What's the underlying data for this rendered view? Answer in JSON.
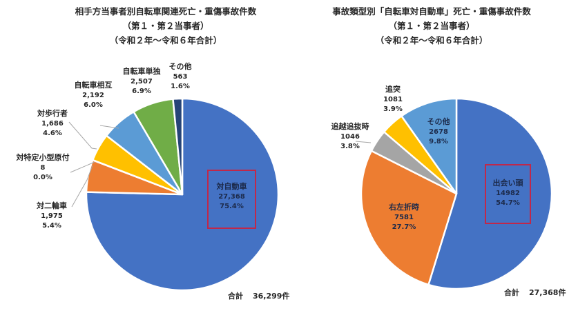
{
  "chart_data": [
    {
      "type": "pie",
      "title": "相手方当事者別自転車関連死亡・重傷事故件数",
      "subtitle": [
        "（第１・第２当事者）",
        "（令和２年～令和６年合計）"
      ],
      "categories": [
        "対自動車",
        "対二輪車",
        "対特定小型原付",
        "対歩行者",
        "自転車相互",
        "自転車単独",
        "その他"
      ],
      "values": [
        27368,
        1975,
        8,
        1686,
        2192,
        2507,
        563
      ],
      "value_labels": [
        "27,368",
        "1,975",
        "8",
        "1,686",
        "2,192",
        "2,507",
        "563"
      ],
      "percentages": [
        "75.4%",
        "5.4%",
        "0.0%",
        "4.6%",
        "6.0%",
        "6.9%",
        "1.6%"
      ],
      "colors": [
        "#4472c4",
        "#ed7d31",
        "#ed7d31",
        "#ffc000",
        "#5b9bd5",
        "#70ad47",
        "#264478"
      ],
      "start_angle": "12 o'clock, clockwise",
      "highlighted": "対自動車",
      "total_label": "合計",
      "total_value": "36,299件"
    },
    {
      "type": "pie",
      "title": "事故類型別「自転車対自動車」死亡・重傷事故件数",
      "subtitle": [
        "（第１・第２当事者）",
        "（令和２年～令和６年合計）"
      ],
      "categories": [
        "出会い頭",
        "右左折時",
        "追越追抜時",
        "追突",
        "その他"
      ],
      "values": [
        14982,
        7581,
        1046,
        1081,
        2678
      ],
      "value_labels": [
        "14982",
        "7581",
        "1046",
        "1081",
        "2678"
      ],
      "percentages": [
        "54.7%",
        "27.7%",
        "3.8%",
        "3.9%",
        "9.8%"
      ],
      "colors": [
        "#4472c4",
        "#ed7d31",
        "#a5a5a5",
        "#ffc000",
        "#5b9bd5"
      ],
      "start_angle": "12 o'clock, clockwise",
      "highlighted": "出会い頭",
      "total_label": "合計",
      "total_value": "27,368件"
    }
  ],
  "left": {
    "title": [
      "相手方当事者別自転車関連死亡・重傷事故件数",
      "（第１・第２当事者）",
      "（令和２年～令和６年合計）"
    ],
    "labels": [
      {
        "name": "対自動車",
        "value": "27,368",
        "pct": "75.4%"
      },
      {
        "name": "対二輪車",
        "value": "1,975",
        "pct": "5.4%"
      },
      {
        "name": "対特定小型原付",
        "value": "8",
        "pct": "0.0%"
      },
      {
        "name": "対歩行者",
        "value": "1,686",
        "pct": "4.6%"
      },
      {
        "name": "自転車相互",
        "value": "2,192",
        "pct": "6.0%"
      },
      {
        "name": "自転車単独",
        "value": "2,507",
        "pct": "6.9%"
      },
      {
        "name": "その他",
        "value": "563",
        "pct": "1.6%"
      }
    ],
    "total_label": "合計",
    "total_value": "36,299件"
  },
  "right": {
    "title": [
      "事故類型別「自転車対自動車」死亡・重傷事故件数",
      "（第１・第２当事者）",
      "（令和２年～令和６年合計）"
    ],
    "labels": [
      {
        "name": "出会い頭",
        "value": "14982",
        "pct": "54.7%"
      },
      {
        "name": "右左折時",
        "value": "7581",
        "pct": "27.7%"
      },
      {
        "name": "追越追抜時",
        "value": "1046",
        "pct": "3.8%"
      },
      {
        "name": "追突",
        "value": "1081",
        "pct": "3.9%"
      },
      {
        "name": "その他",
        "value": "2678",
        "pct": "9.8%"
      }
    ],
    "total_label": "合計",
    "total_value": "27,368件"
  }
}
